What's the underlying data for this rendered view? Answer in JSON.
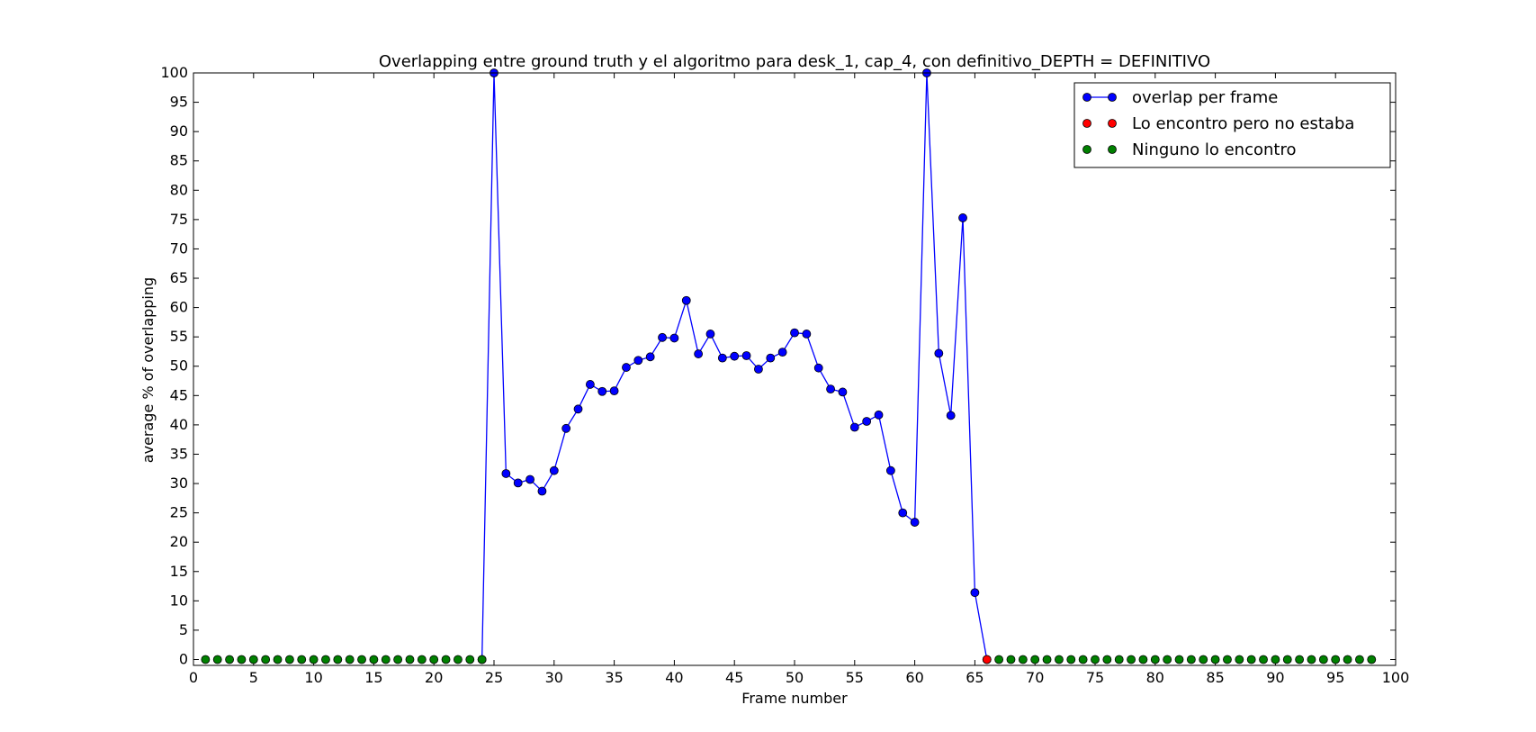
{
  "chart_data": {
    "type": "line",
    "title": "Overlapping entre ground truth y el algoritmo para desk_1, cap_4, con definitivo_DEPTH = DEFINITIVO",
    "xlabel": "Frame number",
    "ylabel": "average % of overlapping",
    "xlim": [
      0,
      100
    ],
    "ylim": [
      -1,
      100
    ],
    "xticks": [
      0,
      5,
      10,
      15,
      20,
      25,
      30,
      35,
      40,
      45,
      50,
      55,
      60,
      65,
      70,
      75,
      80,
      85,
      90,
      95,
      100
    ],
    "yticks": [
      0,
      5,
      10,
      15,
      20,
      25,
      30,
      35,
      40,
      45,
      50,
      55,
      60,
      65,
      70,
      75,
      80,
      85,
      90,
      95,
      100
    ],
    "grid": false,
    "legend_position": "top-right",
    "series": [
      {
        "name": "overlap per frame",
        "color": "#0000ff",
        "style": "line-marker",
        "x": [
          24,
          25,
          26,
          27,
          28,
          29,
          30,
          31,
          32,
          33,
          34,
          35,
          36,
          37,
          38,
          39,
          40,
          41,
          42,
          43,
          44,
          45,
          46,
          47,
          48,
          49,
          50,
          51,
          52,
          53,
          54,
          55,
          56,
          57,
          58,
          59,
          60,
          61,
          62,
          63,
          64,
          65,
          66
        ],
        "y": [
          0,
          100,
          31.7,
          30.1,
          30.7,
          28.7,
          32.2,
          39.4,
          42.7,
          46.9,
          45.7,
          45.8,
          49.8,
          51.0,
          51.6,
          54.9,
          54.8,
          61.2,
          52.1,
          55.5,
          51.4,
          51.7,
          51.8,
          49.5,
          51.4,
          52.4,
          55.7,
          55.5,
          49.7,
          46.1,
          45.6,
          39.6,
          40.6,
          41.7,
          32.2,
          25.0,
          23.4,
          100,
          52.2,
          41.6,
          75.3,
          11.4,
          0
        ]
      },
      {
        "name": "Lo encontro pero no estaba",
        "color": "#ff0000",
        "style": "marker",
        "x": [
          66
        ],
        "y": [
          0
        ]
      },
      {
        "name": "Ninguno lo encontro",
        "color": "#008000",
        "style": "marker",
        "x": [
          1,
          2,
          3,
          4,
          5,
          6,
          7,
          8,
          9,
          10,
          11,
          12,
          13,
          14,
          15,
          16,
          17,
          18,
          19,
          20,
          21,
          22,
          23,
          24,
          67,
          68,
          69,
          70,
          71,
          72,
          73,
          74,
          75,
          76,
          77,
          78,
          79,
          80,
          81,
          82,
          83,
          84,
          85,
          86,
          87,
          88,
          89,
          90,
          91,
          92,
          93,
          94,
          95,
          96,
          97,
          98
        ],
        "y": [
          0,
          0,
          0,
          0,
          0,
          0,
          0,
          0,
          0,
          0,
          0,
          0,
          0,
          0,
          0,
          0,
          0,
          0,
          0,
          0,
          0,
          0,
          0,
          0,
          0,
          0,
          0,
          0,
          0,
          0,
          0,
          0,
          0,
          0,
          0,
          0,
          0,
          0,
          0,
          0,
          0,
          0,
          0,
          0,
          0,
          0,
          0,
          0,
          0,
          0,
          0,
          0,
          0,
          0,
          0,
          0
        ]
      }
    ]
  }
}
